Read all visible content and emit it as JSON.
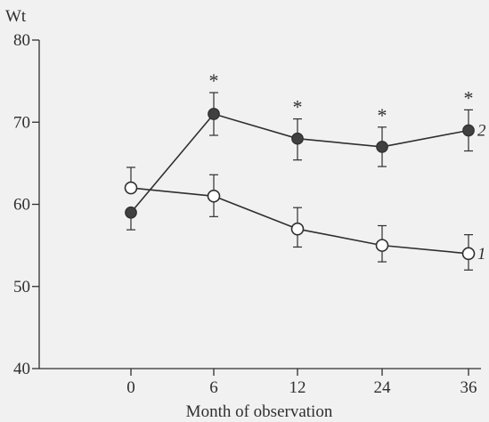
{
  "chart_data": {
    "type": "line",
    "title": "",
    "xlabel": "Month of observation",
    "ylabel": "Wt",
    "categories": [
      "0",
      "6",
      "12",
      "24",
      "36"
    ],
    "ylim": [
      40,
      80
    ],
    "yticks": [
      "40",
      "50",
      "60",
      "70",
      "80"
    ],
    "grid": false,
    "series": [
      {
        "name": "1",
        "marker": "open-circle",
        "values": [
          62,
          61,
          57,
          55,
          54
        ],
        "err_upper": [
          2.5,
          2.6,
          2.6,
          2.4,
          2.3
        ],
        "err_lower": [
          0,
          2.5,
          2.2,
          2.0,
          2.0
        ],
        "significance": [
          "",
          "",
          "",
          "",
          ""
        ]
      },
      {
        "name": "2",
        "marker": "filled-circle",
        "values": [
          59,
          71,
          68,
          67,
          69
        ],
        "err_upper": [
          0,
          2.6,
          2.4,
          2.4,
          2.5
        ],
        "err_lower": [
          2.1,
          2.6,
          2.6,
          2.4,
          2.5
        ],
        "significance": [
          "",
          "*",
          "*",
          "*",
          "*"
        ]
      }
    ]
  }
}
